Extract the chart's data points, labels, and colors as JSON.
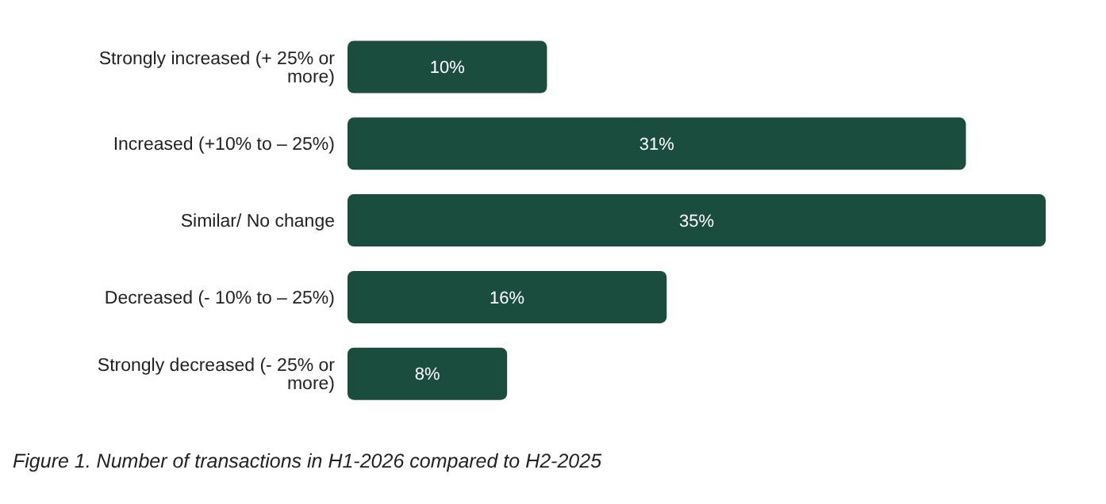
{
  "chart_data": {
    "type": "bar",
    "orientation": "horizontal",
    "categories": [
      "Strongly increased (+ 25% or more)",
      "Increased (+10% to – 25%)",
      "Similar/ No change",
      "Decreased (- 10% to – 25%)",
      "Strongly decreased (- 25% or more)"
    ],
    "values": [
      10,
      31,
      35,
      16,
      8
    ],
    "value_labels": [
      "10%",
      "31%",
      "35%",
      "16%",
      "8%"
    ],
    "color": "#1b4d3e",
    "annotations": [
      "Figure 1. Number of transactions in H1-2026 compared to H2-2025"
    ]
  }
}
